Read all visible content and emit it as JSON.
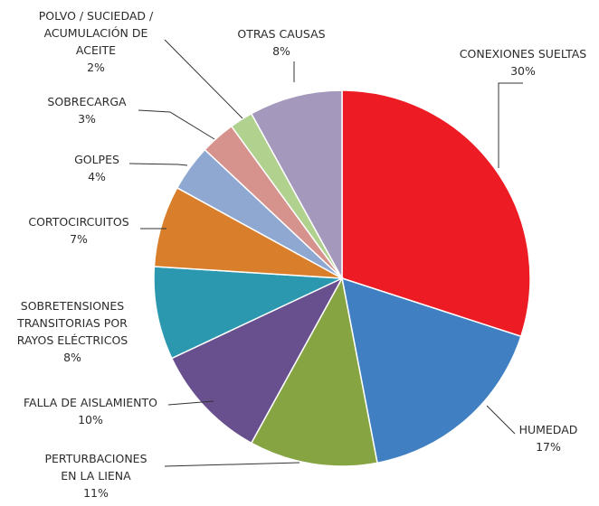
{
  "chart_data": {
    "type": "pie",
    "slices": [
      {
        "lines": [
          "CONEXIONES SUELTAS"
        ],
        "pct_label": "30%",
        "value": 30,
        "color": "#ed1c24"
      },
      {
        "lines": [
          "HUMEDAD"
        ],
        "pct_label": "17%",
        "value": 17,
        "color": "#4080c2"
      },
      {
        "lines": [
          "PERTURBACIONES",
          "EN LA LIENA"
        ],
        "pct_label": "11%",
        "value": 11,
        "color": "#86a441"
      },
      {
        "lines": [
          "FALLA DE AISLAMIENTO"
        ],
        "pct_label": "10%",
        "value": 10,
        "color": "#684f8e"
      },
      {
        "lines": [
          "SOBRETENSIONES",
          "TRANSITORIAS POR",
          "RAYOS ELÉCTRICOS"
        ],
        "pct_label": "8%",
        "value": 8,
        "color": "#2b98af"
      },
      {
        "lines": [
          "CORTOCIRCUITOS"
        ],
        "pct_label": "7%",
        "value": 7,
        "color": "#d97f2c"
      },
      {
        "lines": [
          "GOLPES"
        ],
        "pct_label": "4%",
        "value": 4,
        "color": "#8fa8d2"
      },
      {
        "lines": [
          "SOBRECARGA"
        ],
        "pct_label": "3%",
        "value": 3,
        "color": "#d6928c"
      },
      {
        "lines": [
          "POLVO / SUCIEDAD /",
          "ACUMULACIÓN DE",
          "ACEITE"
        ],
        "pct_label": "2%",
        "value": 2,
        "color": "#b1d18f"
      },
      {
        "lines": [
          "OTRAS CAUSAS"
        ],
        "pct_label": "8%",
        "value": 8,
        "color": "#a499bd"
      }
    ]
  }
}
